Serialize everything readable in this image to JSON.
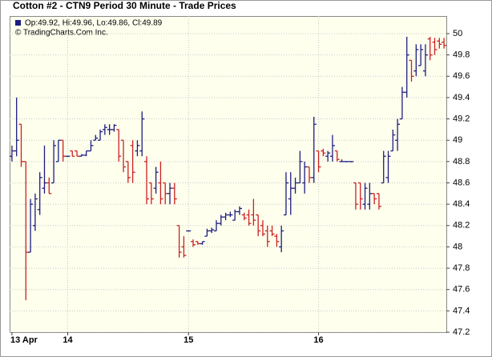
{
  "chart_data": {
    "type": "ohlc",
    "title": "Cotton #2 - CTN9 Period 30 Minute - Trade Prices",
    "info": "Op:49.92, Hi:49.96, Lo:49.86, Cl:49.89",
    "copyright": "© TradingCharts.Com Inc.",
    "up_color": "#1c1c80",
    "down_color": "#cc2020",
    "background": "#ffffee",
    "grid": true,
    "ylim": [
      47.2,
      50.165
    ],
    "yticks": [
      47.2,
      47.4,
      47.6,
      47.8,
      48,
      48.2,
      48.4,
      48.6,
      48.8,
      49,
      49.2,
      49.4,
      49.6,
      49.8,
      50
    ],
    "categories": [
      "13 Apr",
      null,
      null,
      null,
      null,
      null,
      null,
      null,
      null,
      null,
      null,
      null,
      "14",
      null,
      null,
      null,
      null,
      null,
      null,
      null,
      null,
      null,
      null,
      null,
      null,
      null,
      null,
      null,
      null,
      null,
      null,
      null,
      null,
      null,
      null,
      null,
      null,
      null,
      "15",
      null,
      null,
      null,
      null,
      null,
      null,
      null,
      null,
      null,
      null,
      null,
      null,
      null,
      null,
      null,
      null,
      null,
      null,
      null,
      null,
      null,
      null,
      null,
      null,
      null,
      null,
      null,
      "16",
      null,
      null,
      null,
      null,
      null,
      null,
      null,
      null,
      null,
      null,
      null,
      null,
      null,
      null,
      null,
      null,
      null,
      null,
      null,
      null,
      null,
      null,
      null,
      null,
      null,
      null,
      null
    ],
    "open": [
      48.85,
      48.9,
      49.15,
      48.8,
      47.95,
      48.2,
      48.35,
      48.55,
      48.6,
      48.6,
      48.8,
      49.0,
      48.85,
      48.9,
      48.9,
      48.85,
      48.86,
      48.9,
      49.0,
      49.0,
      49.1,
      49.1,
      49.1,
      49.1,
      49.0,
      48.8,
      48.95,
      48.9,
      48.9,
      48.8,
      48.6,
      48.55,
      48.6,
      48.6,
      48.5,
      48.55,
      48.2,
      48.0,
      48.15,
      48.05,
      48.05,
      48.03,
      48.1,
      48.15,
      48.15,
      48.22,
      48.28,
      48.3,
      48.25,
      48.33,
      48.3,
      48.3,
      48.3,
      48.3,
      48.2,
      48.15,
      48.15,
      48.1,
      48.0,
      48.3,
      48.45,
      48.55,
      48.6,
      48.6,
      48.75,
      48.65,
      48.9,
      48.9,
      48.85,
      48.85,
      48.9,
      48.8,
      48.8,
      48.8,
      48.6,
      48.6,
      48.4,
      48.4,
      48.5,
      48.5,
      48.6,
      48.65,
      48.9,
      49.0,
      49.2,
      49.45,
      49.75,
      49.65,
      49.7,
      49.65,
      49.95,
      49.92,
      49.93,
      49.92
    ],
    "high": [
      48.95,
      49.4,
      49.15,
      48.8,
      48.45,
      48.5,
      48.7,
      48.95,
      48.65,
      49.0,
      49.0,
      49.0,
      48.85,
      48.9,
      48.9,
      48.87,
      48.9,
      49.0,
      49.05,
      49.1,
      49.15,
      49.15,
      49.15,
      49.1,
      49.0,
      48.8,
      49.0,
      49.0,
      49.27,
      48.85,
      48.6,
      48.75,
      48.8,
      48.6,
      48.6,
      48.6,
      48.2,
      48.1,
      48.15,
      48.07,
      48.05,
      48.05,
      48.17,
      48.18,
      48.25,
      48.3,
      48.32,
      48.33,
      48.35,
      48.38,
      48.32,
      48.35,
      48.45,
      48.3,
      48.25,
      48.2,
      48.2,
      48.12,
      48.2,
      48.7,
      48.7,
      48.65,
      48.9,
      48.8,
      48.75,
      49.22,
      48.9,
      48.92,
      48.9,
      49.05,
      48.9,
      48.82,
      48.8,
      48.8,
      48.6,
      48.6,
      48.6,
      48.6,
      48.5,
      48.5,
      48.9,
      48.9,
      49.1,
      49.2,
      49.5,
      49.97,
      49.75,
      49.9,
      49.9,
      49.9,
      49.97,
      49.96,
      49.96,
      49.96
    ],
    "low": [
      48.8,
      48.85,
      48.75,
      47.5,
      47.95,
      48.15,
      48.3,
      48.5,
      48.5,
      48.6,
      48.8,
      48.8,
      48.85,
      48.85,
      48.85,
      48.85,
      48.85,
      48.9,
      49.0,
      49.0,
      49.05,
      49.05,
      49.08,
      48.8,
      48.7,
      48.6,
      48.6,
      48.85,
      48.85,
      48.4,
      48.4,
      48.5,
      48.4,
      48.4,
      48.4,
      48.4,
      47.9,
      47.9,
      48.15,
      48.0,
      48.02,
      48.02,
      48.1,
      48.13,
      48.15,
      48.2,
      48.25,
      48.28,
      48.25,
      48.3,
      48.25,
      48.2,
      48.2,
      48.1,
      48.1,
      48.0,
      48.1,
      48.0,
      47.95,
      48.3,
      48.3,
      48.5,
      48.6,
      48.5,
      48.6,
      48.6,
      48.7,
      48.85,
      48.8,
      48.8,
      48.8,
      48.8,
      48.8,
      48.8,
      48.35,
      48.35,
      48.35,
      48.35,
      48.4,
      48.35,
      48.6,
      48.6,
      48.9,
      48.9,
      49.2,
      49.4,
      49.55,
      49.6,
      49.7,
      49.6,
      49.75,
      49.8,
      49.86,
      49.86
    ],
    "close": [
      48.9,
      49.0,
      48.8,
      47.95,
      48.4,
      48.45,
      48.65,
      48.6,
      48.5,
      48.95,
      49.0,
      48.85,
      48.85,
      48.85,
      48.85,
      48.86,
      48.9,
      48.95,
      49.02,
      49.08,
      49.12,
      49.1,
      49.14,
      48.85,
      48.75,
      48.65,
      48.7,
      48.95,
      49.2,
      48.45,
      48.45,
      48.7,
      48.45,
      48.5,
      48.55,
      48.45,
      47.95,
      47.92,
      48.15,
      48.02,
      48.03,
      48.05,
      48.15,
      48.16,
      48.22,
      48.28,
      48.3,
      48.3,
      48.33,
      48.36,
      48.27,
      48.22,
      48.25,
      48.15,
      48.12,
      48.05,
      48.12,
      48.05,
      48.15,
      48.6,
      48.55,
      48.6,
      48.8,
      48.75,
      48.65,
      49.15,
      48.75,
      48.88,
      48.88,
      48.95,
      48.82,
      48.8,
      48.8,
      48.8,
      48.4,
      48.45,
      48.55,
      48.5,
      48.45,
      48.38,
      48.85,
      48.85,
      49.05,
      49.15,
      49.45,
      49.8,
      49.6,
      49.85,
      49.85,
      49.8,
      49.8,
      49.85,
      49.9,
      49.89
    ]
  }
}
